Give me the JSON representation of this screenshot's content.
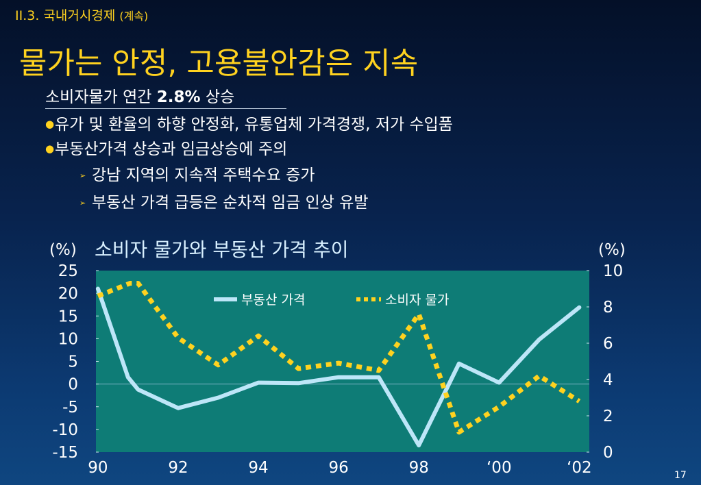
{
  "header": {
    "section": "II.3. 국내거시경제",
    "section_sub": "(계속)",
    "title": "물가는 안정, 고용불안감은 지속"
  },
  "summary": {
    "subtitle_pre": "소비자물가 연간 ",
    "subtitle_bold": "2.8%",
    "subtitle_post": " 상승",
    "bullets": [
      "유가 및 환율의 하향 안정화, 유통업체 가격경쟁, 저가 수입품",
      "부동산가격 상승과 임금상승에 주의"
    ],
    "sub_bullets": [
      "강남 지역의 지속적 주택수요 증가",
      "부동산 가격 급등은 순차적 임금 인상 유발"
    ]
  },
  "chart_data": {
    "type": "line",
    "title": "소비자 물가와 부동산 가격 추이",
    "left_unit": "(%)",
    "right_unit": "(%)",
    "x_tick_labels": [
      "90",
      "92",
      "94",
      "96",
      "98",
      "‘00",
      "‘02"
    ],
    "x_ticks": [
      1990,
      1992,
      1994,
      1996,
      1998,
      2000,
      2002
    ],
    "xlim": [
      1989.95,
      2002.25
    ],
    "y_left_ticks": [
      "25",
      "20",
      "15",
      "10",
      "5",
      "0",
      "-5",
      "-10",
      "-15"
    ],
    "y_left_lim": [
      -15,
      25
    ],
    "y_right_ticks": [
      "10",
      "8",
      "6",
      "4",
      "2",
      "0"
    ],
    "y_right_lim": [
      0,
      10
    ],
    "legend_position": "top-center",
    "plot_background": "#0e7c76",
    "series": [
      {
        "name": "부동산 가격",
        "axis": "left",
        "color": "#bde6f8",
        "style": "solid",
        "x": [
          1990,
          1990.75,
          1991,
          1992,
          1993,
          1994,
          1995,
          1996,
          1997,
          1998,
          1999,
          2000,
          2001,
          2002
        ],
        "values": [
          21,
          1.5,
          -1.2,
          -5.3,
          -3,
          0.3,
          0.2,
          1.5,
          1.5,
          -13.5,
          4.5,
          0.3,
          9.8,
          16.9
        ]
      },
      {
        "name": "소비자 물가",
        "axis": "right",
        "color": "#ffd21f",
        "style": "dotted",
        "x": [
          1990,
          1990.8,
          1991,
          1992,
          1993,
          1994,
          1995,
          1996,
          1997,
          1998,
          1999,
          2000,
          2001,
          2002
        ],
        "values": [
          8.6,
          9.3,
          9.3,
          6.3,
          4.8,
          6.4,
          4.6,
          4.9,
          4.5,
          7.6,
          1.1,
          2.5,
          4.2,
          2.8
        ]
      }
    ]
  },
  "footer": {
    "page": "17"
  }
}
